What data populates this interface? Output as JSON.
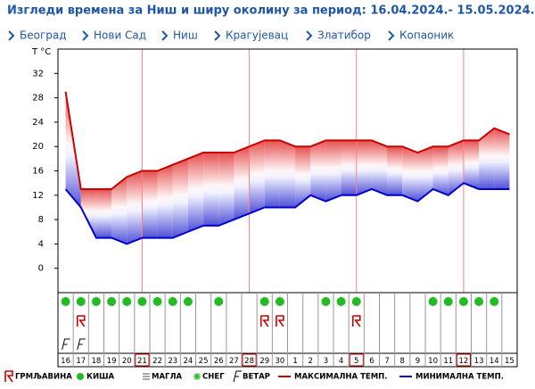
{
  "header": {
    "title": "Изгледи времена за Ниш и ширу околину за период: 16.04.2024.- 15.05.2024."
  },
  "nav": [
    "Београд",
    "Нови Сад",
    "Ниш",
    "Крагујевац",
    "Златибор",
    "Копаоник"
  ],
  "chart_data": {
    "type": "line",
    "y_label": "T °C",
    "categories": [
      "16",
      "17",
      "18",
      "19",
      "20",
      "21",
      "22",
      "23",
      "24",
      "25",
      "26",
      "27",
      "28",
      "29",
      "30",
      "1",
      "2",
      "3",
      "4",
      "5",
      "6",
      "7",
      "8",
      "9",
      "10",
      "11",
      "12",
      "13",
      "14",
      "15"
    ],
    "series": [
      {
        "name": "МАКСИМАЛНА ТЕМП.",
        "color": "#cc0000",
        "values": [
          29,
          13,
          13,
          13,
          15,
          16,
          16,
          17,
          18,
          19,
          19,
          19,
          20,
          21,
          21,
          20,
          20,
          21,
          21,
          21,
          21,
          20,
          20,
          19,
          20,
          20,
          21,
          21,
          23,
          22
        ]
      },
      {
        "name": "МИНИМАЛНА ТЕМП.",
        "color": "#0000cc",
        "values": [
          13,
          10,
          5,
          5,
          4,
          5,
          5,
          5,
          6,
          7,
          7,
          8,
          9,
          10,
          10,
          10,
          12,
          11,
          12,
          12,
          13,
          12,
          12,
          11,
          13,
          12,
          14,
          13,
          13,
          13
        ]
      }
    ],
    "highlight": [
      false,
      false,
      false,
      false,
      false,
      true,
      false,
      false,
      false,
      false,
      false,
      false,
      true,
      false,
      false,
      false,
      false,
      false,
      false,
      true,
      false,
      false,
      false,
      false,
      false,
      false,
      true,
      false,
      false,
      false
    ],
    "rain": [
      true,
      true,
      true,
      true,
      true,
      true,
      true,
      true,
      true,
      false,
      true,
      false,
      false,
      true,
      true,
      false,
      false,
      true,
      true,
      true,
      false,
      false,
      false,
      false,
      true,
      true,
      true,
      true,
      true,
      false
    ],
    "thunder": [
      false,
      true,
      false,
      false,
      false,
      false,
      false,
      false,
      false,
      false,
      false,
      false,
      false,
      true,
      true,
      false,
      false,
      false,
      false,
      true,
      false,
      false,
      false,
      false,
      false,
      false,
      false,
      false,
      false,
      false
    ],
    "wind": [
      true,
      true,
      false,
      false,
      false,
      false,
      false,
      false,
      false,
      false,
      false,
      false,
      false,
      false,
      false,
      false,
      false,
      false,
      false,
      false,
      false,
      false,
      false,
      false,
      false,
      false,
      false,
      false,
      false,
      false
    ],
    "legend_items": [
      "ГРМЉАВИНА",
      "КИША",
      "МАГЛА",
      "СНЕГ",
      "ВЕТАР"
    ],
    "ylim": [
      -4,
      36
    ],
    "yticks": [
      0,
      4,
      8,
      12,
      16,
      20,
      24,
      28,
      32
    ],
    "grid_color": "#ff8080"
  }
}
